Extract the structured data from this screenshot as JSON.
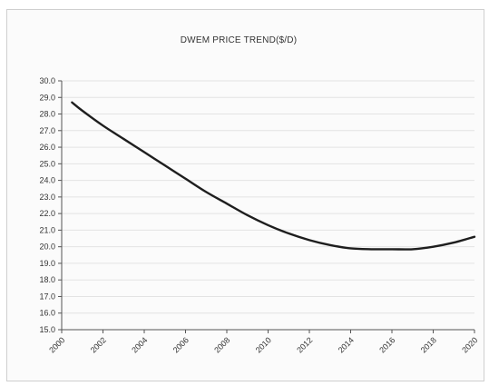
{
  "chart_data": {
    "type": "line",
    "title": "DWEM PRICE TREND($/D)",
    "xlabel": "",
    "ylabel": "",
    "ylim": [
      15.0,
      30.0
    ],
    "yticks": [
      "30.0",
      "29.0",
      "28.0",
      "27.0",
      "26.0",
      "25.0",
      "24.0",
      "23.0",
      "22.0",
      "21.0",
      "20.0",
      "19.0",
      "18.0",
      "17.0",
      "16.0",
      "15.0"
    ],
    "xticks": [
      "2000",
      "2002",
      "2004",
      "2006",
      "2008",
      "2010",
      "2012",
      "2014",
      "2016",
      "2018",
      "2020"
    ],
    "grid": true,
    "series": [
      {
        "x": [
          2000.5,
          2001,
          2002,
          2003,
          2004,
          2005,
          2006,
          2007,
          2008,
          2009,
          2010,
          2011,
          2012,
          2013,
          2014,
          2015,
          2016,
          2017,
          2018,
          2019,
          2020
        ],
        "values": [
          28.7,
          28.2,
          27.3,
          26.5,
          25.7,
          24.9,
          24.1,
          23.3,
          22.6,
          21.9,
          21.3,
          20.8,
          20.4,
          20.1,
          19.9,
          19.85,
          19.85,
          19.85,
          20.0,
          20.25,
          20.6
        ]
      }
    ]
  }
}
